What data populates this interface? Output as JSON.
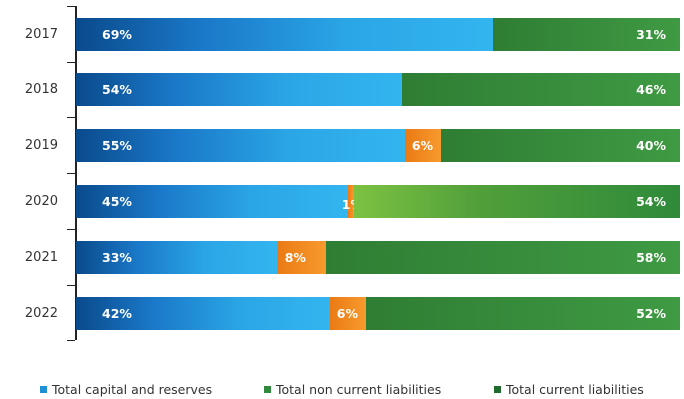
{
  "chart_data": {
    "type": "bar",
    "orientation": "horizontal",
    "stacked": true,
    "categories": [
      "2017",
      "2018",
      "2019",
      "2020",
      "2021",
      "2022"
    ],
    "series": [
      {
        "name": "Total capital and reserves",
        "values": [
          69,
          54,
          55,
          45,
          33,
          42
        ],
        "labels": [
          "69%",
          "54%",
          "55%",
          "45%",
          "33%",
          "42%"
        ],
        "color": "#2aa3e4"
      },
      {
        "name": "Total non current liabilities",
        "values": [
          0,
          0,
          6,
          1,
          8,
          6
        ],
        "labels": [
          "",
          "",
          "6%",
          "1%",
          "8%",
          "6%"
        ],
        "color": "#f58a1f"
      },
      {
        "name": "Total current liabilities",
        "values": [
          31,
          46,
          40,
          54,
          58,
          52
        ],
        "labels": [
          "31%",
          "46%",
          "40%",
          "54%",
          "58%",
          "52%"
        ],
        "color": "#3a8a3a"
      }
    ],
    "legend_labels": [
      "Total capital and reserves",
      "Total non current liabilities",
      "Total current liabilities"
    ],
    "legend_colors": [
      "#1f8fd6",
      "#2f8a3c",
      "#1f6b2e"
    ],
    "xlim": [
      0,
      100
    ],
    "legend_position": "bottom",
    "grid": false
  }
}
